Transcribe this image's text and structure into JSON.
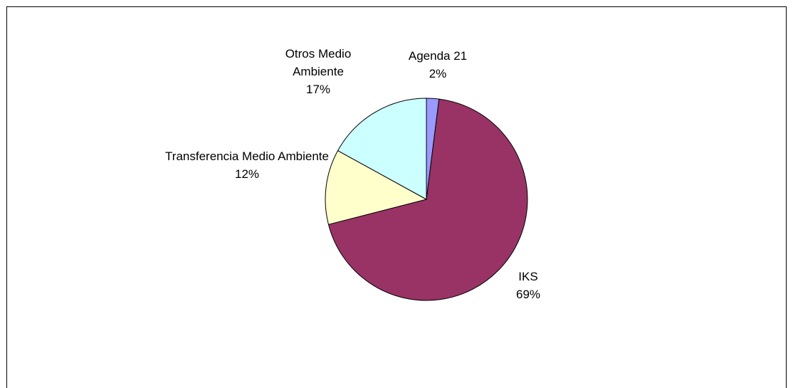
{
  "chart_data": {
    "type": "pie",
    "categories": [
      "Agenda 21",
      "IKS",
      "Transferencia Medio Ambiente",
      "Otros Medio Ambiente"
    ],
    "values": [
      2,
      69,
      12,
      17
    ],
    "value_labels": [
      "2%",
      "69%",
      "12%",
      "17%"
    ],
    "colors": [
      "#9999ff",
      "#993366",
      "#ffffcc",
      "#ccffff"
    ]
  }
}
